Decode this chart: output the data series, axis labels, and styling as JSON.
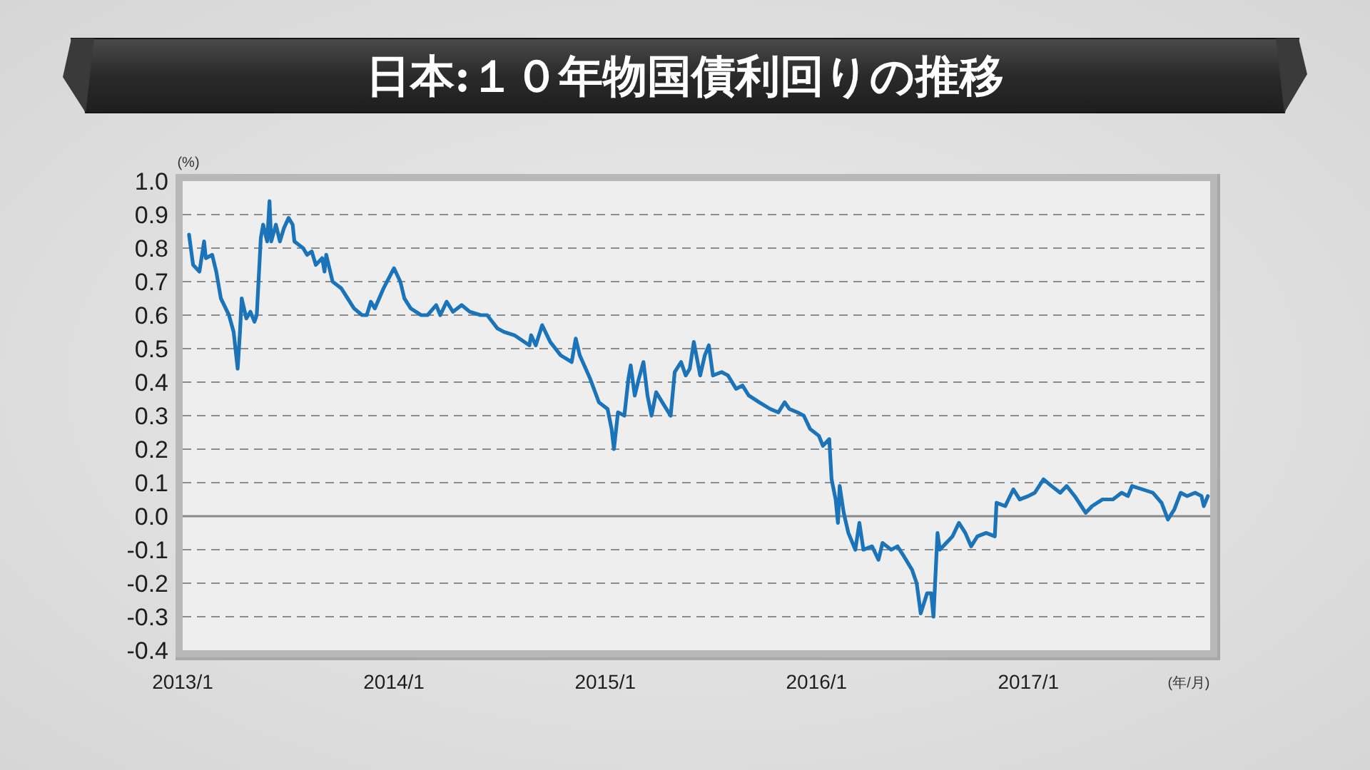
{
  "chart_data": {
    "type": "line",
    "title": "日本:１０年物国債利回りの推移",
    "ylabel": "(%)",
    "xlabel": "(年/月)",
    "x": [
      "2013-01-12",
      "2013-01-19",
      "2013-01-30",
      "2013-02-07",
      "2013-02-10",
      "2013-02-21",
      "2013-02-28",
      "2013-03-08",
      "2013-03-22",
      "2013-03-30",
      "2013-04-06",
      "2013-04-10",
      "2013-04-13",
      "2013-04-21",
      "2013-04-28",
      "2013-05-05",
      "2013-05-09",
      "2013-05-16",
      "2013-05-20",
      "2013-05-27",
      "2013-05-31",
      "2013-06-03",
      "2013-06-11",
      "2013-06-18",
      "2013-06-25",
      "2013-07-03",
      "2013-07-10",
      "2013-07-13",
      "2013-07-28",
      "2013-08-04",
      "2013-08-12",
      "2013-08-19",
      "2013-08-30",
      "2013-09-03",
      "2013-09-06",
      "2013-09-17",
      "2013-10-02",
      "2013-10-13",
      "2013-10-24",
      "2013-11-07",
      "2013-11-15",
      "2013-11-22",
      "2013-11-29",
      "2013-12-14",
      "2014-01-01",
      "2014-01-12",
      "2014-01-19",
      "2014-01-30",
      "2014-02-17",
      "2014-02-28",
      "2014-03-15",
      "2014-03-22",
      "2014-04-02",
      "2014-04-13",
      "2014-04-28",
      "2014-05-12",
      "2014-05-31",
      "2014-06-11",
      "2014-06-29",
      "2014-07-10",
      "2014-07-28",
      "2014-08-23",
      "2014-08-26",
      "2014-09-03",
      "2014-09-14",
      "2014-09-28",
      "2014-10-16",
      "2014-11-04",
      "2014-11-11",
      "2014-11-18",
      "2014-12-06",
      "2014-12-21",
      "2015-01-05",
      "2015-01-12",
      "2015-01-16",
      "2015-01-23",
      "2015-02-03",
      "2015-02-10",
      "2015-02-14",
      "2015-02-21",
      "2015-02-28",
      "2015-03-08",
      "2015-03-15",
      "2015-03-22",
      "2015-03-30",
      "2015-04-13",
      "2015-04-24",
      "2015-05-01",
      "2015-05-12",
      "2015-05-20",
      "2015-05-27",
      "2015-06-03",
      "2015-06-14",
      "2015-06-22",
      "2015-06-29",
      "2015-07-06",
      "2015-07-21",
      "2015-08-01",
      "2015-08-15",
      "2015-08-26",
      "2015-09-06",
      "2015-09-24",
      "2015-10-13",
      "2015-10-27",
      "2015-11-07",
      "2015-11-15",
      "2015-11-29",
      "2015-12-10",
      "2015-12-21",
      "2016-01-05",
      "2016-01-12",
      "2016-01-23",
      "2016-01-27",
      "2016-02-03",
      "2016-02-07",
      "2016-02-10",
      "2016-02-17",
      "2016-02-25",
      "2016-03-08",
      "2016-03-15",
      "2016-03-22",
      "2016-04-06",
      "2016-04-17",
      "2016-04-24",
      "2016-05-09",
      "2016-05-20",
      "2016-05-31",
      "2016-06-14",
      "2016-06-22",
      "2016-06-29",
      "2016-07-10",
      "2016-07-17",
      "2016-07-21",
      "2016-07-28",
      "2016-08-01",
      "2016-08-12",
      "2016-08-23",
      "2016-09-03",
      "2016-09-14",
      "2016-09-24",
      "2016-10-05",
      "2016-10-20",
      "2016-11-04",
      "2016-11-07",
      "2016-11-22",
      "2016-12-06",
      "2016-12-17",
      "2017-01-01",
      "2017-01-12",
      "2017-01-27",
      "2017-02-10",
      "2017-02-25",
      "2017-03-08",
      "2017-03-22",
      "2017-04-10",
      "2017-04-21",
      "2017-05-09",
      "2017-05-27",
      "2017-06-11",
      "2017-06-22",
      "2017-06-29",
      "2017-07-17",
      "2017-08-04",
      "2017-08-19",
      "2017-08-30",
      "2017-09-10",
      "2017-09-21",
      "2017-10-02",
      "2017-10-16",
      "2017-10-27",
      "2017-10-31",
      "2017-11-07"
    ],
    "series": [
      {
        "color": "#1b74b9",
        "values": [
          0.84,
          0.75,
          0.73,
          0.82,
          0.77,
          0.78,
          0.73,
          0.65,
          0.6,
          0.55,
          0.44,
          0.55,
          0.65,
          0.59,
          0.61,
          0.58,
          0.6,
          0.83,
          0.87,
          0.82,
          0.94,
          0.82,
          0.87,
          0.82,
          0.86,
          0.89,
          0.87,
          0.82,
          0.8,
          0.78,
          0.79,
          0.75,
          0.77,
          0.73,
          0.78,
          0.7,
          0.68,
          0.65,
          0.62,
          0.6,
          0.6,
          0.64,
          0.62,
          0.68,
          0.74,
          0.7,
          0.65,
          0.62,
          0.6,
          0.6,
          0.63,
          0.6,
          0.64,
          0.61,
          0.63,
          0.61,
          0.6,
          0.6,
          0.56,
          0.55,
          0.54,
          0.51,
          0.54,
          0.51,
          0.57,
          0.52,
          0.48,
          0.46,
          0.53,
          0.48,
          0.41,
          0.34,
          0.32,
          0.26,
          0.2,
          0.31,
          0.3,
          0.41,
          0.45,
          0.36,
          0.41,
          0.46,
          0.36,
          0.3,
          0.37,
          0.33,
          0.3,
          0.43,
          0.46,
          0.42,
          0.44,
          0.52,
          0.42,
          0.48,
          0.51,
          0.42,
          0.43,
          0.42,
          0.38,
          0.39,
          0.36,
          0.34,
          0.32,
          0.31,
          0.34,
          0.32,
          0.31,
          0.3,
          0.26,
          0.24,
          0.21,
          0.23,
          0.11,
          0.05,
          -0.02,
          0.09,
          0.01,
          -0.05,
          -0.1,
          -0.02,
          -0.1,
          -0.09,
          -0.13,
          -0.08,
          -0.1,
          -0.09,
          -0.12,
          -0.16,
          -0.2,
          -0.29,
          -0.23,
          -0.23,
          -0.3,
          -0.05,
          -0.1,
          -0.08,
          -0.06,
          -0.02,
          -0.05,
          -0.09,
          -0.06,
          -0.05,
          -0.06,
          0.04,
          0.03,
          0.08,
          0.05,
          0.06,
          0.07,
          0.11,
          0.09,
          0.07,
          0.09,
          0.06,
          0.01,
          0.03,
          0.05,
          0.05,
          0.07,
          0.06,
          0.09,
          0.08,
          0.07,
          0.04,
          -0.01,
          0.02,
          0.07,
          0.06,
          0.07,
          0.06,
          0.03,
          0.06
        ]
      }
    ],
    "xlim": [
      "2013-01-01",
      "2017-11-11"
    ],
    "xticks": [
      {
        "value": "2013-01-01",
        "label": "2013/1"
      },
      {
        "value": "2014-01-01",
        "label": "2014/1"
      },
      {
        "value": "2015-01-01",
        "label": "2015/1"
      },
      {
        "value": "2016-01-01",
        "label": "2016/1"
      },
      {
        "value": "2017-01-01",
        "label": "2017/1"
      }
    ],
    "ylim": [
      -0.4,
      1.0
    ],
    "yticks": [
      {
        "value": 1.0,
        "label": "1.0"
      },
      {
        "value": 0.9,
        "label": "0.9"
      },
      {
        "value": 0.8,
        "label": "0.8"
      },
      {
        "value": 0.7,
        "label": "0.7"
      },
      {
        "value": 0.6,
        "label": "0.6"
      },
      {
        "value": 0.5,
        "label": "0.5"
      },
      {
        "value": 0.4,
        "label": "0.4"
      },
      {
        "value": 0.3,
        "label": "0.3"
      },
      {
        "value": 0.2,
        "label": "0.2"
      },
      {
        "value": 0.1,
        "label": "0.1"
      },
      {
        "value": 0.0,
        "label": "0.0"
      },
      {
        "value": -0.1,
        "label": "-0.1"
      },
      {
        "value": -0.2,
        "label": "-0.2"
      },
      {
        "value": -0.3,
        "label": "-0.3"
      },
      {
        "value": -0.4,
        "label": "-0.4"
      }
    ],
    "grid": "y",
    "line_style": "solid",
    "ref_lines": [
      {
        "axis": "y",
        "value": 0,
        "color": "#8a8a8a",
        "line_style": "solid"
      }
    ]
  }
}
